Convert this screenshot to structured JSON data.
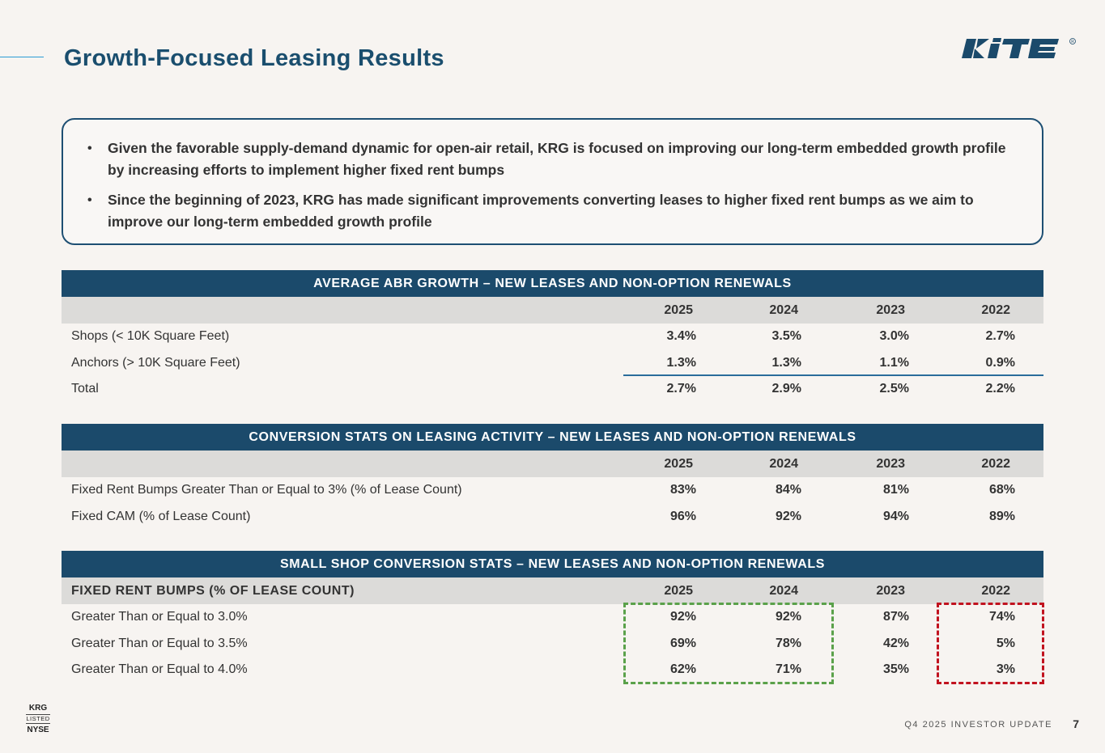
{
  "header": {
    "title": "Growth-Focused Leasing Results",
    "logo_text": "KITE"
  },
  "callout": {
    "bullets": [
      "Given the favorable supply-demand dynamic for open-air retail, KRG is focused on improving our long-term embedded growth profile by increasing efforts to implement higher fixed rent bumps",
      "Since the beginning of 2023, KRG has made significant improvements converting leases to higher fixed rent bumps as we aim to improve our long-term embedded growth profile"
    ]
  },
  "abr": {
    "title": "AVERAGE ABR GROWTH – NEW LEASES AND NON-OPTION RENEWALS",
    "years": [
      "2025",
      "2024",
      "2023",
      "2022"
    ],
    "rows": [
      {
        "label": "Shops (< 10K Square Feet)",
        "values": [
          "3.4%",
          "3.5%",
          "3.0%",
          "2.7%"
        ]
      },
      {
        "label": "Anchors (> 10K Square Feet)",
        "values": [
          "1.3%",
          "1.3%",
          "1.1%",
          "0.9%"
        ]
      },
      {
        "label": "Total",
        "values": [
          "2.7%",
          "2.9%",
          "2.5%",
          "2.2%"
        ]
      }
    ]
  },
  "conversion": {
    "title": "CONVERSION STATS ON LEASING ACTIVITY – NEW LEASES AND NON-OPTION RENEWALS",
    "years": [
      "2025",
      "2024",
      "2023",
      "2022"
    ],
    "rows": [
      {
        "label": "Fixed Rent Bumps Greater Than or Equal to 3% (% of Lease Count)",
        "values": [
          "83%",
          "84%",
          "81%",
          "68%"
        ]
      },
      {
        "label": "Fixed CAM (% of Lease Count)",
        "values": [
          "96%",
          "92%",
          "94%",
          "89%"
        ]
      }
    ]
  },
  "small_shop": {
    "title": "SMALL SHOP CONVERSION STATS – NEW LEASES AND NON-OPTION RENEWALS",
    "sub_label": "FIXED RENT BUMPS (% OF LEASE COUNT)",
    "years": [
      "2025",
      "2024",
      "2023",
      "2022"
    ],
    "rows": [
      {
        "label": "Greater Than or Equal to 3.0%",
        "values": [
          "92%",
          "92%",
          "87%",
          "74%"
        ]
      },
      {
        "label": "Greater Than or Equal to 3.5%",
        "values": [
          "69%",
          "78%",
          "42%",
          "5%"
        ]
      },
      {
        "label": "Greater Than or Equal to 4.0%",
        "values": [
          "62%",
          "71%",
          "35%",
          "3%"
        ]
      }
    ]
  },
  "footer": {
    "ticker": "KRG",
    "listed": "LISTED",
    "exchange": "NYSE",
    "report": "Q4 2025 INVESTOR UPDATE",
    "page": "7"
  },
  "colors": {
    "navy": "#1b4a6b",
    "highlight_green": "#5aa14a",
    "highlight_red": "#c1121f"
  }
}
